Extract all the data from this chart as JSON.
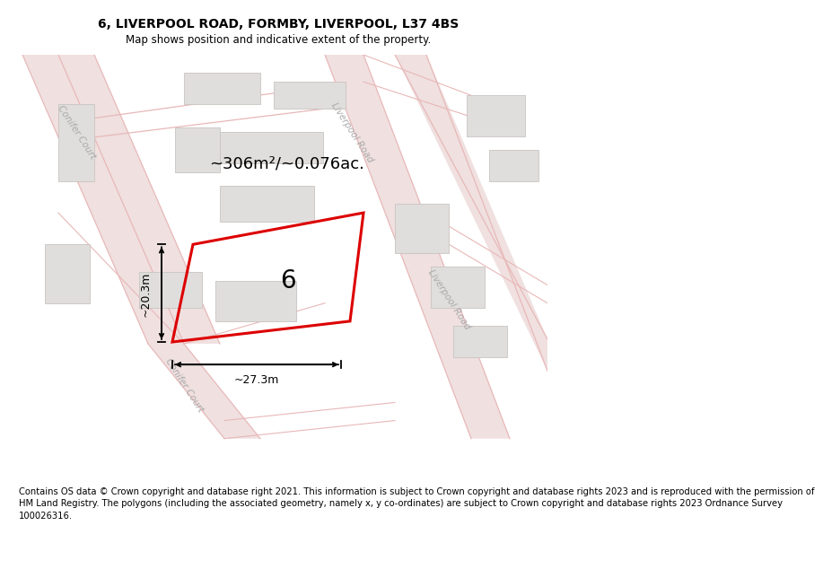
{
  "title": "6, LIVERPOOL ROAD, FORMBY, LIVERPOOL, L37 4BS",
  "subtitle": "Map shows position and indicative extent of the property.",
  "footer": "Contains OS data © Crown copyright and database right 2021. This information is subject to Crown copyright and database rights 2023 and is reproduced with the permission of HM Land Registry. The polygons (including the associated geometry, namely x, y co-ordinates) are subject to Crown copyright and database rights 2023 Ordnance Survey 100026316.",
  "area_text": "~306m²/~0.076ac.",
  "number_label": "6",
  "width_label": "~27.3m",
  "height_label": "~20.3m",
  "bg_color": "#f5f3f3",
  "road_line_color": "#e8b8b8",
  "road_fill_color": "#f0e0e0",
  "building_color": "#e0dedc",
  "building_edge": "#c8c4c0",
  "highlight_color": "#dd0000",
  "street_color": "#aaaaaa",
  "title_fontsize": 10,
  "subtitle_fontsize": 8.5,
  "footer_fontsize": 7.2,
  "area_fontsize": 13,
  "number_fontsize": 20,
  "dim_fontsize": 9,
  "street_fontsize": 7.5
}
